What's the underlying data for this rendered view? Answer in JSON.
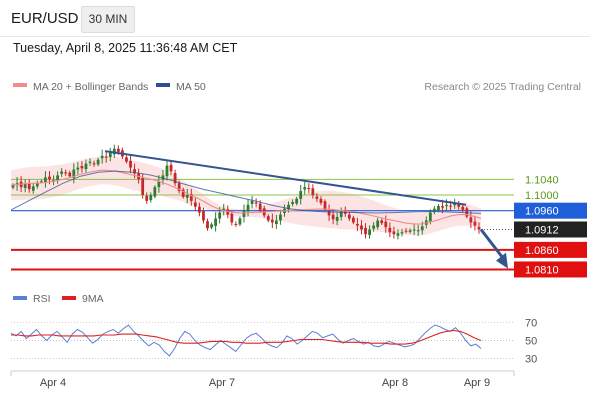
{
  "header": {
    "pair": "EUR/USD",
    "timeframe": "30 MIN",
    "timestamp": "Tuesday, April 8, 2025 11:36:48 AM CET"
  },
  "legend": {
    "ma20": {
      "label": "MA 20 + Bollinger Bands",
      "color": "#f28b8b"
    },
    "ma50": {
      "label": "MA 50",
      "color": "#2f4f8f"
    },
    "credit": "Research © 2025 Trading Central"
  },
  "rsi_legend": {
    "rsi": {
      "label": "RSI",
      "color": "#5b7fd6"
    },
    "ma9": {
      "label": "9MA",
      "color": "#e02020"
    }
  },
  "colors": {
    "up": "#2e7d32",
    "down": "#c62828",
    "resistance": "#8bc34a",
    "pivot": "#1e5fd9",
    "support": "#e01010",
    "trend": "#34558f"
  },
  "chart_data": {
    "type": "candlestick",
    "price_range": [
      1.0778,
      1.1222
    ],
    "x_labels": [
      "Apr 4",
      "Apr 7",
      "Apr 8",
      "Apr 9"
    ],
    "current_price": "1.0912",
    "levels": [
      {
        "label": "1.1040",
        "value": 1.104,
        "kind": "resistance"
      },
      {
        "label": "1.1000",
        "value": 1.1,
        "kind": "resistance"
      },
      {
        "label": "1.0960",
        "value": 1.096,
        "kind": "pivot"
      },
      {
        "label": "1.0860",
        "value": 1.086,
        "kind": "support"
      },
      {
        "label": "1.0810",
        "value": 1.081,
        "kind": "support"
      }
    ],
    "candle_closes": [
      1.1025,
      1.103,
      1.102,
      1.1028,
      1.1015,
      1.1022,
      1.103,
      1.1035,
      1.1045,
      1.104,
      1.1038,
      1.105,
      1.106,
      1.1055,
      1.1048,
      1.1065,
      1.107,
      1.1068,
      1.108,
      1.1085,
      1.1078,
      1.109,
      1.11,
      1.1095,
      1.1108,
      1.1118,
      1.111,
      1.1098,
      1.1085,
      1.107,
      1.1055,
      1.104,
      1.1,
      1.0985,
      1.1,
      1.102,
      1.1035,
      1.105,
      1.1075,
      1.106,
      1.103,
      1.101,
      1.0995,
      1.1,
      1.0985,
      1.097,
      1.0955,
      1.0935,
      1.0915,
      1.0925,
      1.094,
      1.0955,
      1.0965,
      1.095,
      1.093,
      1.0925,
      1.094,
      1.096,
      1.0975,
      1.0985,
      1.0978,
      1.0962,
      1.0948,
      1.0935,
      1.093,
      1.0935,
      1.095,
      1.0965,
      1.0975,
      1.0982,
      1.099,
      1.101,
      1.102,
      1.1015,
      1.1,
      1.099,
      1.098,
      1.0962,
      1.0948,
      1.0938,
      1.0944,
      1.0958,
      1.0952,
      1.094,
      1.093,
      1.0922,
      1.0912,
      1.09,
      1.0912,
      1.0922,
      1.0935,
      1.0928,
      1.0918,
      1.0905,
      1.09,
      1.0902,
      1.0905,
      1.0908,
      1.091,
      1.0912,
      1.091,
      1.092,
      1.0935,
      1.0955,
      1.0965,
      1.0972,
      1.0968,
      1.0975,
      1.0972,
      1.098,
      1.097,
      1.0962,
      1.0945,
      1.093,
      1.0922,
      1.0912
    ],
    "ma20": [
      1.1025,
      1.1027,
      1.1029,
      1.103,
      1.1031,
      1.1033,
      1.1036,
      1.104,
      1.1045,
      1.1051,
      1.1056,
      1.106,
      1.1063,
      1.1063,
      1.1061,
      1.1057,
      1.1052,
      1.1048,
      1.1043,
      1.1039,
      1.1034,
      1.1027,
      1.1019,
      1.101,
      1.1,
      1.0992,
      1.0982,
      1.0971,
      1.0963,
      1.0958,
      1.0955,
      1.0954,
      1.0955,
      1.0956,
      1.0957,
      1.0958,
      1.0959,
      1.096,
      1.0961,
      1.0962,
      1.0963,
      1.0964,
      1.0964,
      1.0963,
      1.0961,
      1.0959,
      1.0957,
      1.0953,
      1.0949,
      1.0945,
      1.094,
      1.0936,
      1.0932,
      1.0928,
      1.0926,
      1.0926,
      1.093,
      1.0935,
      1.0941,
      1.0947,
      1.095,
      1.095,
      1.0946,
      1.094
    ],
    "ma50": [
      1.0962,
      1.0985,
      1.1008,
      1.103,
      1.1048,
      1.1058,
      1.1061,
      1.1058,
      1.1051,
      1.104,
      1.1027,
      1.1015,
      1.1005,
      1.0995,
      1.0985,
      1.0974,
      1.0965,
      1.096,
      1.0957,
      1.0956,
      1.0955,
      1.0954,
      1.0955,
      1.0957,
      1.0958,
      1.0957,
      1.0955,
      1.0953
    ],
    "trendline": [
      1.1112,
      1.0975
    ],
    "projection": [
      1.0912,
      1.0812
    ],
    "rsi_axis": [
      70,
      50,
      30
    ],
    "rsi_range": [
      23,
      78
    ],
    "rsi": [
      58,
      55,
      60,
      52,
      57,
      62,
      55,
      50,
      56,
      60,
      54,
      48,
      57,
      62,
      59,
      53,
      47,
      51,
      57,
      60,
      62,
      58,
      63,
      67,
      60,
      55,
      49,
      44,
      48,
      45,
      38,
      33,
      41,
      52,
      60,
      57,
      50,
      45,
      42,
      40,
      45,
      50,
      46,
      42,
      38,
      45,
      52,
      56,
      58,
      53,
      47,
      44,
      42,
      47,
      55,
      52,
      46,
      50,
      55,
      60,
      58,
      53,
      55,
      57,
      51,
      47,
      50,
      52,
      49,
      46,
      48,
      44,
      43,
      46,
      49,
      47,
      45,
      43,
      44,
      46,
      52,
      58,
      63,
      67,
      65,
      62,
      60,
      64,
      58,
      50,
      44,
      46,
      41
    ],
    "rsi_ma9": [
      56,
      56,
      55,
      55,
      56,
      56,
      56,
      55,
      55,
      55,
      55,
      55,
      55,
      56,
      56,
      56,
      57,
      57,
      57,
      56,
      55,
      54,
      52,
      50,
      48,
      47,
      47,
      47,
      48,
      49,
      49,
      49,
      48,
      48,
      47,
      47,
      47,
      48,
      48,
      48,
      49,
      50,
      51,
      51,
      51,
      51,
      50,
      49,
      48,
      48,
      48,
      48,
      47,
      47,
      47,
      46,
      46,
      46,
      47,
      49,
      52,
      55,
      58,
      60,
      61,
      60,
      57,
      53,
      50
    ]
  }
}
